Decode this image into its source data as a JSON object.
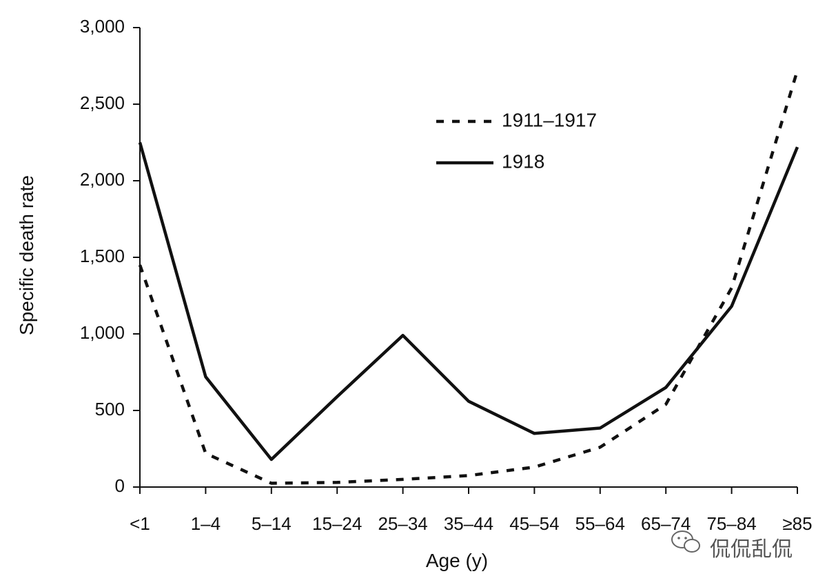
{
  "chart_data": {
    "type": "line",
    "title": "",
    "xlabel": "Age (y)",
    "ylabel": "Specific death rate",
    "categories": [
      "<1",
      "1–4",
      "5–14",
      "15–24",
      "25–34",
      "35–44",
      "45–54",
      "55–64",
      "65–74",
      "75–84",
      "≥85"
    ],
    "ylim": [
      0,
      3000
    ],
    "yticks": [
      0,
      500,
      1000,
      1500,
      2000,
      2500,
      3000
    ],
    "ytick_labels": [
      "0",
      "500",
      "1,000",
      "1,500",
      "2,000",
      "2,500",
      "3,000"
    ],
    "grid": false,
    "legend_position": "top-right",
    "series": [
      {
        "name": "1911–1917",
        "style": "dashed",
        "color": "#111111",
        "values": [
          1450,
          220,
          25,
          30,
          50,
          75,
          130,
          260,
          540,
          1300,
          2720
        ]
      },
      {
        "name": "1918",
        "style": "solid",
        "color": "#111111",
        "values": [
          2250,
          720,
          180,
          590,
          990,
          560,
          350,
          385,
          650,
          1180,
          2220
        ]
      }
    ]
  },
  "watermark": {
    "icon": "wechat-icon",
    "text": "侃侃乱侃"
  }
}
